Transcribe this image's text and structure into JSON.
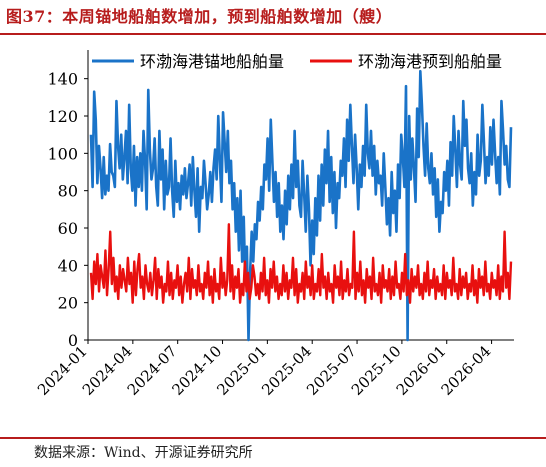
{
  "title": "图37：本周锚地船舶数增加，预到船舶数增加（艘）",
  "source": "数据来源：Wind、开源证券研究所",
  "chart_data": {
    "type": "line",
    "ylim": [
      0,
      150
    ],
    "yticks": [
      0,
      20,
      40,
      60,
      80,
      100,
      120,
      140
    ],
    "xticks": [
      "2024-01",
      "2024-04",
      "2024-07",
      "2024-10",
      "2025-01",
      "2025-04",
      "2025-07",
      "2025-10",
      "2026-01",
      "2026-04"
    ],
    "legend_position": "top",
    "grid": false,
    "series": [
      {
        "name": "环渤海港锚地船舶量",
        "color": "#1a73c8",
        "values": [
          110,
          82,
          133,
          118,
          84,
          104,
          92,
          76,
          98,
          78,
          88,
          80,
          105,
          90,
          88,
          82,
          128,
          104,
          92,
          110,
          86,
          98,
          112,
          84,
          126,
          92,
          80,
          104,
          72,
          98,
          82,
          100,
          80,
          112,
          96,
          70,
          134,
          102,
          86,
          92,
          108,
          82,
          72,
          112,
          86,
          102,
          70,
          96,
          78,
          82,
          108,
          80,
          66,
          96,
          74,
          84,
          70,
          88,
          78,
          92,
          76,
          84,
          94,
          72,
          98,
          80,
          66,
          92,
          58,
          82,
          76,
          96,
          84,
          70,
          78,
          90,
          74,
          92,
          102,
          86,
          120,
          96,
          74,
          122,
          106,
          90,
          112,
          84,
          96,
          70,
          84,
          58,
          76,
          48,
          80,
          42,
          66,
          30,
          50,
          0,
          36,
          58,
          42,
          62,
          54,
          74,
          64,
          82,
          70,
          94,
          86,
          108,
          80,
          118,
          96,
          74,
          90,
          66,
          84,
          58,
          72,
          54,
          80,
          62,
          88,
          70,
          94,
          76,
          112,
          82,
          96,
          72,
          66,
          96,
          78,
          58,
          88,
          70,
          40,
          64,
          46,
          76,
          56,
          88,
          64,
          94,
          72,
          102,
          84,
          112,
          74,
          98,
          68,
          90,
          60,
          84,
          76,
          96,
          88,
          108,
          82,
          118,
          96,
          126,
          104,
          84,
          110,
          92,
          70,
          94,
          82,
          104,
          88,
          126,
          100,
          92,
          112,
          88,
          104,
          78,
          96,
          84,
          88,
          72,
          100,
          82,
          62,
          76,
          56,
          90,
          68,
          80,
          58,
          94,
          76,
          110,
          98,
          82,
          136,
          0,
          120,
          86,
          108,
          92,
          74,
          124,
          98,
          144,
          126,
          104,
          88,
          116,
          92,
          84,
          100,
          78,
          92,
          66,
          86,
          58,
          74,
          68,
          90,
          80,
          96,
          72,
          106,
          88,
          120,
          102,
          82,
          112,
          94,
          86,
          128,
          104,
          118,
          92,
          84,
          100,
          72,
          90,
          78,
          110,
          88,
          96,
          126,
          106,
          84,
          98,
          88,
          114,
          94,
          118,
          100,
          84,
          98,
          78,
          128,
          112,
          94,
          104,
          86,
          82,
          114
        ]
      },
      {
        "name": "环渤海港预到船舶量",
        "color": "#e8100f",
        "values": [
          36,
          22,
          42,
          30,
          46,
          26,
          40,
          34,
          28,
          48,
          24,
          38,
          58,
          30,
          44,
          26,
          34,
          22,
          40,
          28,
          38,
          32,
          26,
          44,
          30,
          36,
          20,
          42,
          24,
          38,
          46,
          28,
          34,
          22,
          40,
          30,
          26,
          36,
          24,
          32,
          44,
          22,
          38,
          28,
          34,
          20,
          30,
          26,
          42,
          24,
          36,
          22,
          32,
          28,
          40,
          24,
          34,
          20,
          30,
          36,
          26,
          44,
          22,
          38,
          28,
          32,
          24,
          40,
          26,
          30,
          22,
          36,
          28,
          42,
          24,
          34,
          20,
          38,
          26,
          30,
          22,
          44,
          28,
          36,
          24,
          32,
          62,
          26,
          40,
          22,
          34,
          28,
          38,
          20,
          30,
          24,
          42,
          26,
          36,
          22,
          28,
          40,
          34,
          24,
          30,
          22,
          36,
          26,
          44,
          24,
          32,
          20,
          38,
          28,
          42,
          26,
          34,
          22,
          30,
          24,
          40,
          26,
          36,
          22,
          32,
          28,
          44,
          24,
          38,
          20,
          30,
          26,
          36,
          22,
          42,
          28,
          34,
          24,
          40,
          22,
          30,
          26,
          38,
          24,
          46,
          28,
          34,
          22,
          36,
          26,
          30,
          20,
          40,
          28,
          34,
          24,
          42,
          22,
          32,
          26,
          38,
          24,
          30,
          28,
          58,
          22,
          36,
          26,
          42,
          24,
          32,
          20,
          38,
          28,
          34,
          22,
          44,
          26,
          30,
          24,
          36,
          20,
          40,
          28,
          32,
          26,
          38,
          22,
          34,
          24,
          42,
          28,
          30,
          22,
          36,
          26,
          46,
          24,
          32,
          20,
          38,
          26,
          34,
          28,
          40,
          24,
          30,
          22,
          36,
          26,
          42,
          24,
          32,
          28,
          38,
          22,
          34,
          26,
          30,
          24,
          40,
          22,
          36,
          28,
          32,
          24,
          44,
          26,
          30,
          22,
          38,
          24,
          34,
          28,
          36,
          22,
          30,
          26,
          40,
          24,
          32,
          20,
          38,
          28,
          34,
          24,
          42,
          26,
          30,
          22,
          36,
          28,
          32,
          24,
          40,
          22,
          34,
          26,
          58,
          28,
          36,
          22,
          42
        ]
      }
    ]
  }
}
